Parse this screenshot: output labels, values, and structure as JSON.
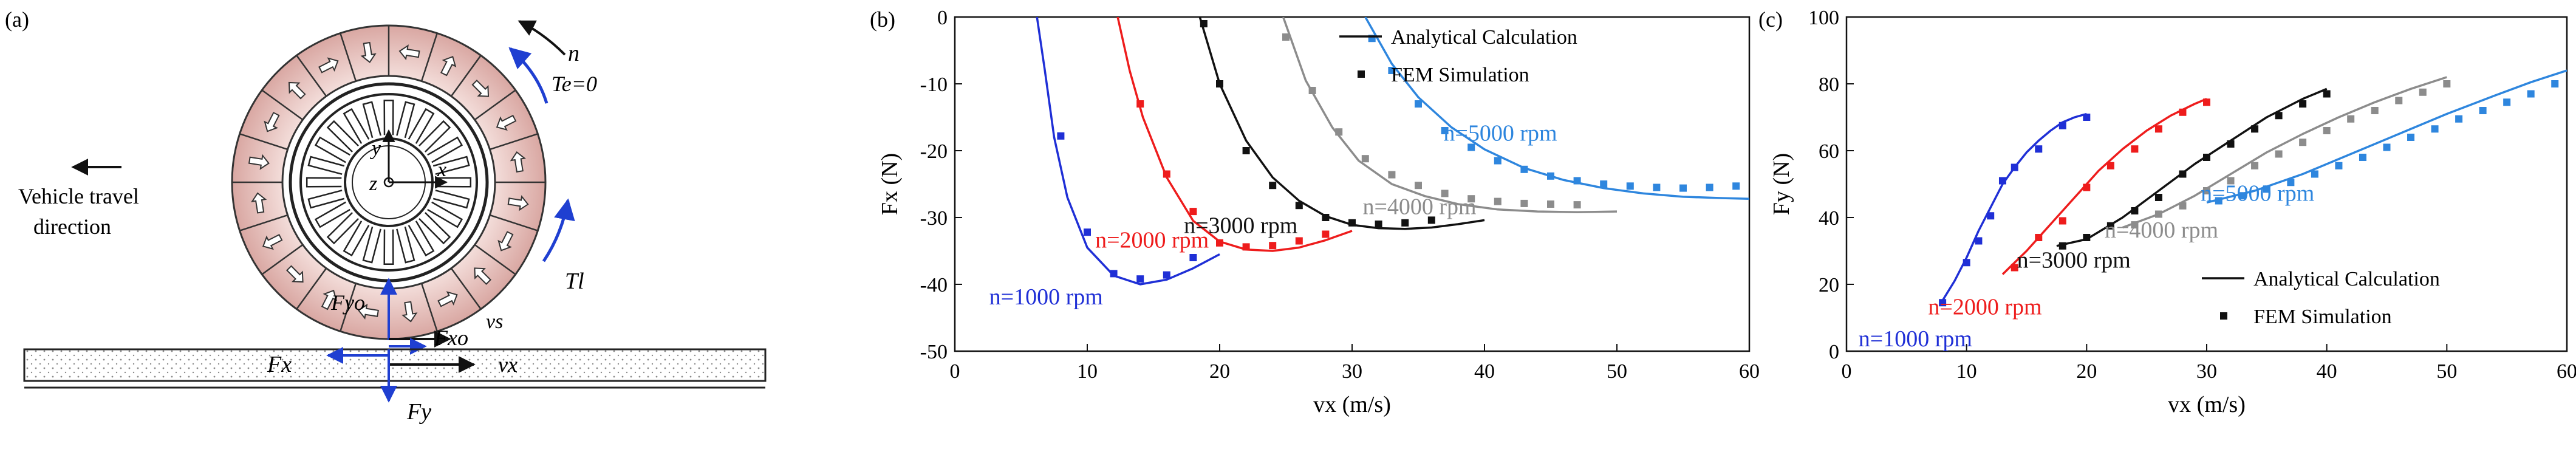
{
  "panel_a": {
    "label": "(a)",
    "text_n": "n",
    "text_te": "Te=0",
    "text_tl": "Tl",
    "vehicle_line1": "Vehicle travel",
    "vehicle_line2": "direction",
    "label_y": "y",
    "label_z": "z",
    "label_x": "x",
    "label_fyo": "Fyo",
    "label_fxo": "Fxo",
    "label_vs": "vs",
    "label_vx": "vx",
    "label_fx": "Fx",
    "label_fy": "Fy",
    "colors": {
      "ring": "#e8c2c0",
      "blue": "#1f3fd1",
      "track": "#f2efea"
    }
  },
  "chart_data": [
    {
      "panel": "(b)",
      "type": "line+scatter",
      "xlabel": "vx (m/s)",
      "ylabel": "Fx (N)",
      "xlim": [
        0,
        60
      ],
      "ylim": [
        -50,
        0
      ],
      "xticks": [
        0,
        10,
        20,
        30,
        40,
        50,
        60
      ],
      "yticks": [
        0,
        -10,
        -20,
        -30,
        -40,
        -50
      ],
      "legend": {
        "position": "top-right",
        "entries": [
          "Analytical Calculation",
          "FEM Simulation"
        ]
      },
      "series": [
        {
          "name": "n=1000 rpm",
          "color": "#1f2fd6",
          "analytical": [
            [
              6.2,
              0
            ],
            [
              6.8,
              -8
            ],
            [
              7.5,
              -18
            ],
            [
              8.5,
              -27
            ],
            [
              10,
              -34.5
            ],
            [
              12,
              -38.7
            ],
            [
              14,
              -40
            ],
            [
              16,
              -39.3
            ],
            [
              18,
              -37.6
            ],
            [
              20,
              -35.5
            ]
          ],
          "fem": [
            [
              8,
              -17.8
            ],
            [
              10,
              -32.2
            ],
            [
              12,
              -38.4
            ],
            [
              14,
              -39.2
            ],
            [
              16,
              -38.6
            ],
            [
              18,
              -36
            ]
          ]
        },
        {
          "name": "n=2000 rpm",
          "color": "#ee1c1c",
          "analytical": [
            [
              12.3,
              0
            ],
            [
              13.2,
              -8
            ],
            [
              14.2,
              -15
            ],
            [
              16,
              -24
            ],
            [
              18,
              -30.5
            ],
            [
              20,
              -33.6
            ],
            [
              22,
              -34.8
            ],
            [
              24,
              -35
            ],
            [
              26,
              -34.5
            ],
            [
              28,
              -33.4
            ],
            [
              30,
              -32
            ]
          ],
          "fem": [
            [
              14,
              -13
            ],
            [
              16,
              -23.5
            ],
            [
              18,
              -29.1
            ],
            [
              20,
              -33.8
            ],
            [
              22,
              -34.4
            ],
            [
              24,
              -34.2
            ],
            [
              26,
              -33.5
            ],
            [
              28,
              -32.5
            ]
          ]
        },
        {
          "name": "n=3000 rpm",
          "color": "#111111",
          "analytical": [
            [
              18.5,
              0
            ],
            [
              20,
              -10
            ],
            [
              22,
              -18.5
            ],
            [
              24,
              -24
            ],
            [
              26,
              -27.5
            ],
            [
              28,
              -29.8
            ],
            [
              30,
              -31.1
            ],
            [
              32,
              -31.6
            ],
            [
              34,
              -31.7
            ],
            [
              36,
              -31.5
            ],
            [
              38,
              -31
            ],
            [
              40,
              -30.4
            ]
          ],
          "fem": [
            [
              18.8,
              -1
            ],
            [
              20,
              -10
            ],
            [
              22,
              -20
            ],
            [
              24,
              -25.2
            ],
            [
              26,
              -28.2
            ],
            [
              28,
              -30
            ],
            [
              30,
              -30.8
            ],
            [
              32,
              -31
            ],
            [
              34,
              -30.8
            ],
            [
              36,
              -30.4
            ]
          ]
        },
        {
          "name": "n=4000 rpm",
          "color": "#8c8c8c",
          "analytical": [
            [
              24.8,
              0
            ],
            [
              26.5,
              -9.5
            ],
            [
              28.5,
              -16.5
            ],
            [
              30.5,
              -21.5
            ],
            [
              33,
              -25
            ],
            [
              35.5,
              -26.8
            ],
            [
              38,
              -28
            ],
            [
              41,
              -28.8
            ],
            [
              44,
              -29.1
            ],
            [
              47,
              -29.2
            ],
            [
              50,
              -29.1
            ]
          ],
          "fem": [
            [
              25,
              -3
            ],
            [
              27,
              -11
            ],
            [
              29,
              -17.2
            ],
            [
              31,
              -21.2
            ],
            [
              33,
              -23.6
            ],
            [
              35,
              -25.2
            ],
            [
              37,
              -26.4
            ],
            [
              39,
              -27.2
            ],
            [
              41,
              -27.6
            ],
            [
              43,
              -27.9
            ],
            [
              45,
              -28
            ],
            [
              47,
              -28.1
            ]
          ]
        },
        {
          "name": "n=5000 rpm",
          "color": "#2e86de",
          "analytical": [
            [
              31,
              0
            ],
            [
              33,
              -7
            ],
            [
              35,
              -12
            ],
            [
              37.5,
              -16.5
            ],
            [
              40,
              -19.8
            ],
            [
              43,
              -22.6
            ],
            [
              46,
              -24.4
            ],
            [
              49,
              -25.6
            ],
            [
              52,
              -26.4
            ],
            [
              55,
              -26.9
            ],
            [
              58,
              -27.1
            ],
            [
              60,
              -27.2
            ]
          ],
          "fem": [
            [
              31.5,
              -3.2
            ],
            [
              33,
              -8
            ],
            [
              35,
              -13
            ],
            [
              37,
              -17
            ],
            [
              39,
              -19.5
            ],
            [
              41,
              -21.5
            ],
            [
              43,
              -22.8
            ],
            [
              45,
              -23.8
            ],
            [
              47,
              -24.5
            ],
            [
              49,
              -25
            ],
            [
              51,
              -25.3
            ],
            [
              53,
              -25.5
            ],
            [
              55,
              -25.6
            ],
            [
              57,
              -25.5
            ],
            [
              59,
              -25.3
            ]
          ]
        }
      ],
      "annotations": [
        "n=1000 rpm",
        "n=2000 rpm",
        "n=3000 rpm",
        "n=4000 rpm",
        "n=5000 rpm"
      ]
    },
    {
      "panel": "(c)",
      "type": "line+scatter",
      "xlabel": "vx (m/s)",
      "ylabel": "Fy (N)",
      "xlim": [
        0,
        60
      ],
      "ylim": [
        0,
        100
      ],
      "xticks": [
        0,
        10,
        20,
        30,
        40,
        50,
        60
      ],
      "yticks": [
        0,
        20,
        40,
        60,
        80,
        100
      ],
      "legend": {
        "position": "bottom-right",
        "entries": [
          "Analytical Calculation",
          "FEM Simulation"
        ]
      },
      "series": [
        {
          "name": "n=1000 rpm",
          "color": "#1f2fd6",
          "analytical": [
            [
              7.8,
              14
            ],
            [
              9,
              21
            ],
            [
              10,
              28
            ],
            [
              11,
              36
            ],
            [
              12,
              43
            ],
            [
              13,
              50
            ],
            [
              14,
              55
            ],
            [
              15,
              59.5
            ],
            [
              16,
              63
            ],
            [
              17,
              66
            ],
            [
              18,
              68.5
            ],
            [
              19,
              70
            ],
            [
              20,
              71
            ]
          ],
          "fem": [
            [
              8,
              14.5
            ],
            [
              10,
              26.5
            ],
            [
              11,
              33
            ],
            [
              12,
              40.5
            ],
            [
              13,
              51
            ],
            [
              14,
              55
            ],
            [
              16,
              60.5
            ],
            [
              18,
              67.5
            ],
            [
              20,
              70
            ]
          ]
        },
        {
          "name": "n=2000 rpm",
          "color": "#ee1c1c",
          "analytical": [
            [
              13,
              23
            ],
            [
              15,
              30
            ],
            [
              17,
              38
            ],
            [
              19,
              46
            ],
            [
              21,
              54
            ],
            [
              23,
              60.5
            ],
            [
              25,
              66
            ],
            [
              27,
              70.5
            ],
            [
              29,
              74
            ],
            [
              30,
              75.5
            ]
          ],
          "fem": [
            [
              14,
              25
            ],
            [
              16,
              34
            ],
            [
              18,
              39
            ],
            [
              20,
              49
            ],
            [
              22,
              55.5
            ],
            [
              24,
              60.5
            ],
            [
              26,
              66.5
            ],
            [
              28,
              71.5
            ],
            [
              30,
              74.5
            ]
          ]
        },
        {
          "name": "n=3000 rpm",
          "color": "#111111",
          "analytical": [
            [
              17.5,
              31.5
            ],
            [
              20,
              33.5
            ],
            [
              23,
              40
            ],
            [
              26,
              48
            ],
            [
              29,
              56
            ],
            [
              32,
              63
            ],
            [
              35,
              70
            ],
            [
              38,
              75.5
            ],
            [
              40,
              78.5
            ]
          ],
          "fem": [
            [
              18,
              31.5
            ],
            [
              20,
              34
            ],
            [
              22,
              37.5
            ],
            [
              24,
              42
            ],
            [
              26,
              46
            ],
            [
              28,
              53
            ],
            [
              30,
              58
            ],
            [
              32,
              62
            ],
            [
              34,
              66.5
            ],
            [
              36,
              70.5
            ],
            [
              38,
              74
            ],
            [
              40,
              77
            ]
          ]
        },
        {
          "name": "n=4000 rpm",
          "color": "#8c8c8c",
          "analytical": [
            [
              23,
              37
            ],
            [
              26,
              41
            ],
            [
              29,
              46.5
            ],
            [
              32,
              53
            ],
            [
              35,
              59.5
            ],
            [
              38,
              65
            ],
            [
              41,
              70
            ],
            [
              44,
              74.5
            ],
            [
              47,
              78.5
            ],
            [
              50,
              82
            ]
          ],
          "fem": [
            [
              24,
              37.8
            ],
            [
              26,
              41
            ],
            [
              28,
              43.5
            ],
            [
              30,
              48
            ],
            [
              32,
              51
            ],
            [
              34,
              55.5
            ],
            [
              36,
              59
            ],
            [
              38,
              62.5
            ],
            [
              40,
              66
            ],
            [
              42,
              69.5
            ],
            [
              44,
              72
            ],
            [
              46,
              75
            ],
            [
              48,
              77.5
            ],
            [
              50,
              80
            ]
          ]
        },
        {
          "name": "n=5000 rpm",
          "color": "#2e86de",
          "analytical": [
            [
              30,
              44.5
            ],
            [
              34,
              48
            ],
            [
              38,
              53
            ],
            [
              42,
              59
            ],
            [
              46,
              65
            ],
            [
              50,
              71
            ],
            [
              54,
              76.5
            ],
            [
              57,
              80.5
            ],
            [
              60,
              84
            ]
          ],
          "fem": [
            [
              31,
              45
            ],
            [
              33,
              46.5
            ],
            [
              35,
              48.5
            ],
            [
              37,
              50.5
            ],
            [
              39,
              53
            ],
            [
              41,
              55.5
            ],
            [
              43,
              58
            ],
            [
              45,
              61
            ],
            [
              47,
              64
            ],
            [
              49,
              66.5
            ],
            [
              51,
              69.5
            ],
            [
              53,
              72
            ],
            [
              55,
              74.5
            ],
            [
              57,
              77
            ],
            [
              59,
              80
            ]
          ]
        }
      ],
      "annotations": [
        "n=1000 rpm",
        "n=2000 rpm",
        "n=3000 rpm",
        "n=4000 rpm",
        "n=5000 rpm"
      ]
    }
  ]
}
